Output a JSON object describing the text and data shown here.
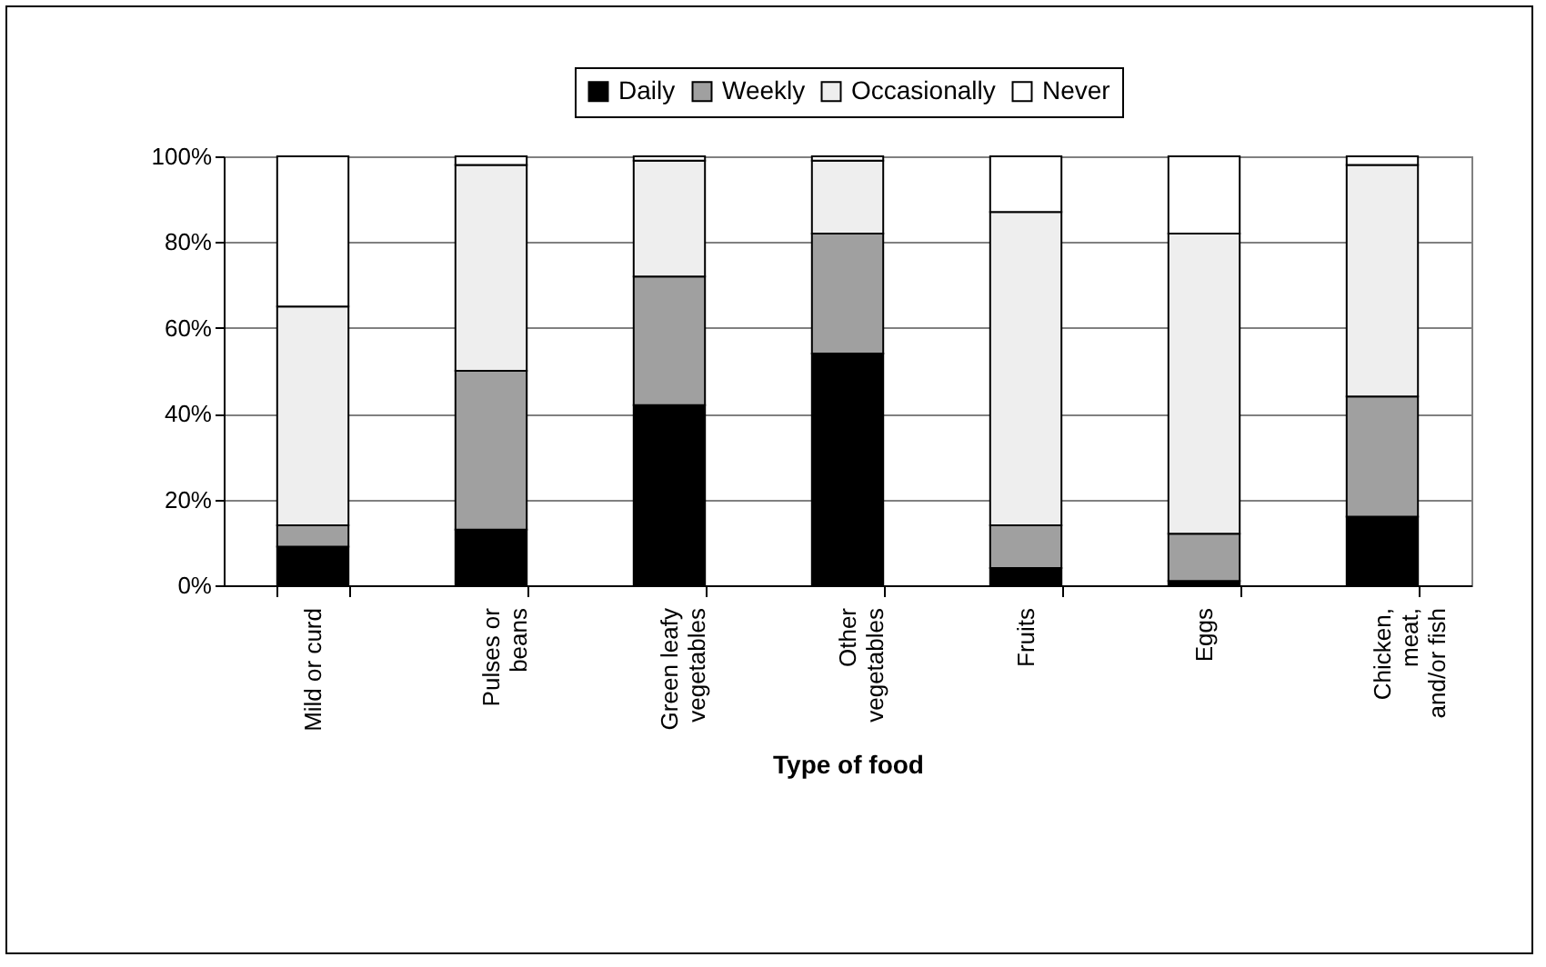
{
  "chart_data": {
    "type": "bar",
    "stacked": true,
    "xlabel": "Type of food",
    "categories": [
      "Mild or curd",
      "Pulses or beans",
      "Green leafy vegetables",
      "Other vegetables",
      "Fruits",
      "Eggs",
      "Chicken, meat, and/or fish"
    ],
    "series": [
      {
        "name": "Daily",
        "color": "#000000",
        "values": [
          9,
          13,
          42,
          54,
          4,
          1,
          16
        ]
      },
      {
        "name": "Weekly",
        "color": "#a0a0a0",
        "values": [
          5,
          37,
          30,
          28,
          10,
          11,
          28
        ]
      },
      {
        "name": "Occasionally",
        "color": "#eeeeee",
        "values": [
          51,
          48,
          27,
          17,
          73,
          70,
          54
        ]
      },
      {
        "name": "Never",
        "color": "#ffffff",
        "values": [
          35,
          2,
          1,
          1,
          13,
          18,
          2
        ]
      }
    ],
    "ylim": [
      0,
      100
    ],
    "yticks": [
      {
        "value": 0,
        "label": "0%"
      },
      {
        "value": 20,
        "label": "20%"
      },
      {
        "value": 40,
        "label": "40%"
      },
      {
        "value": 60,
        "label": "60%"
      },
      {
        "value": 80,
        "label": "80%"
      },
      {
        "value": 100,
        "label": "100%"
      }
    ],
    "grid": "y",
    "legend": "top"
  }
}
